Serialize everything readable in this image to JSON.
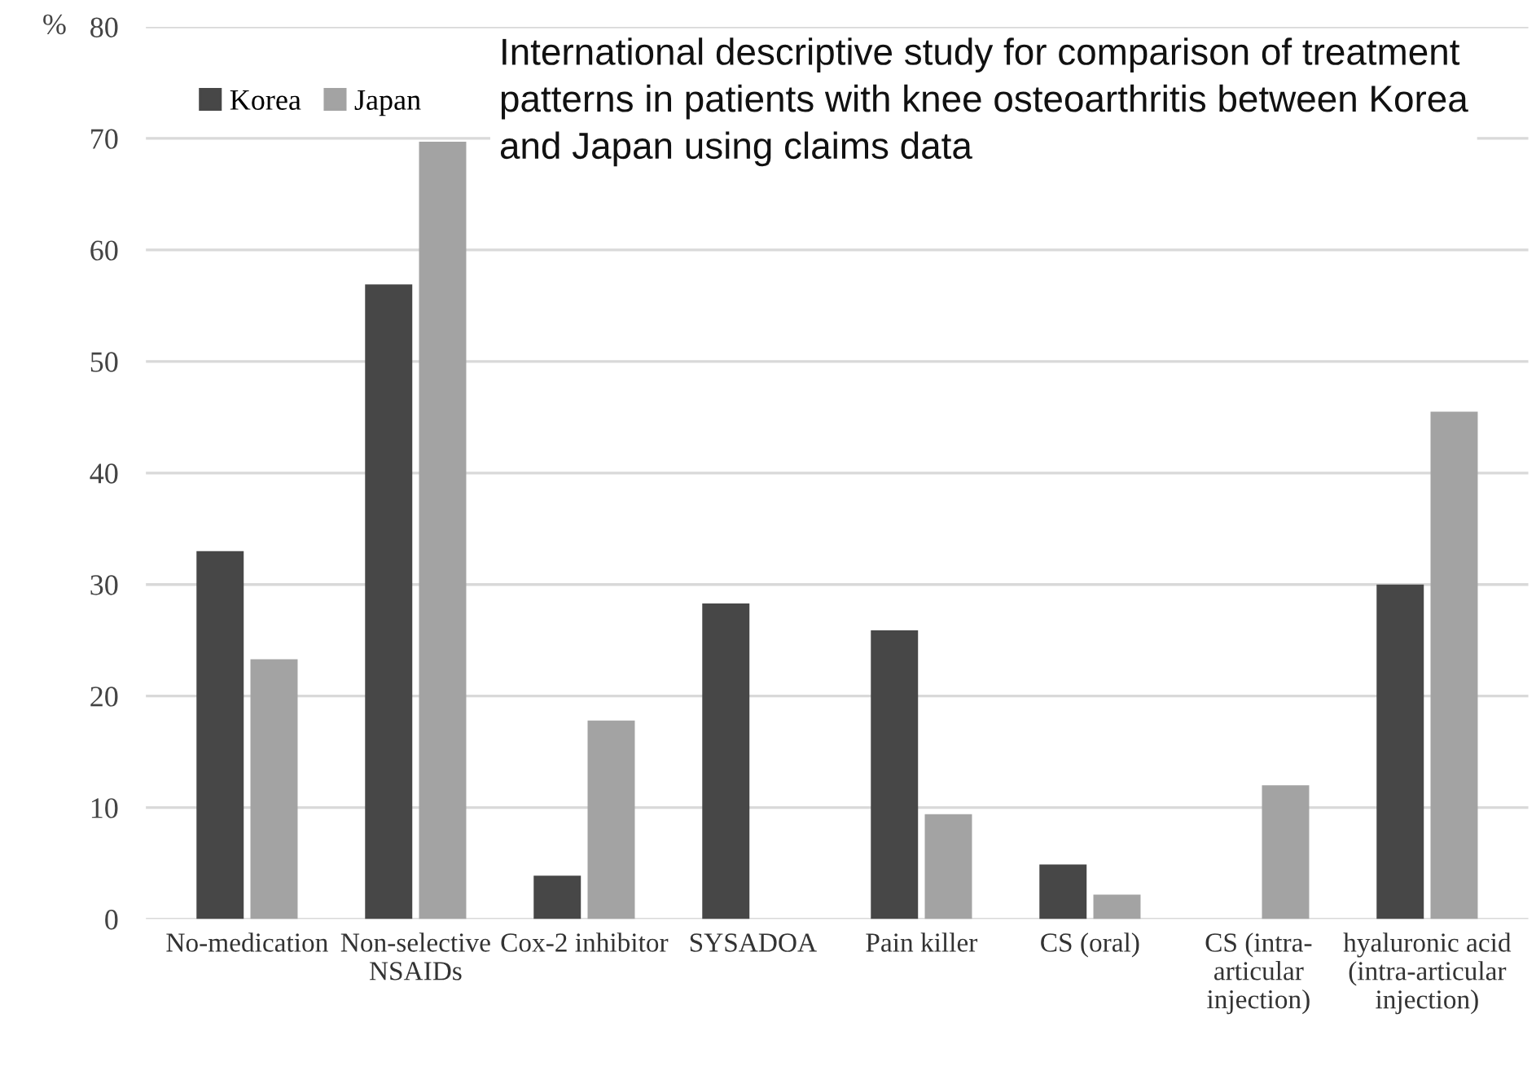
{
  "chart_data": {
    "type": "bar",
    "title": "International descriptive study for comparison of treatment patterns in patients with knee osteoarthritis between Korea and Japan using claims data",
    "ylabel": "%",
    "categories": [
      "No-medication",
      "Non-selective\nNSAIDs",
      "Cox-2 inhibitor",
      "SYSADOA",
      "Pain killer",
      "CS (oral)",
      "CS (intra-\narticular\ninjection)",
      "hyaluronic acid\n(intra-articular\ninjection)"
    ],
    "series": [
      {
        "name": "Korea",
        "color": "#474747",
        "values": [
          33.0,
          56.9,
          3.9,
          28.3,
          25.9,
          4.9,
          0,
          30.0
        ]
      },
      {
        "name": "Japan",
        "color": "#a3a3a3",
        "values": [
          23.3,
          69.7,
          17.8,
          0,
          9.4,
          2.2,
          12.0,
          45.5
        ]
      }
    ],
    "ylim": [
      0,
      80
    ],
    "yticks": [
      0,
      10,
      20,
      30,
      40,
      50,
      60,
      70,
      80
    ],
    "grid": "y",
    "legend": "top left"
  }
}
